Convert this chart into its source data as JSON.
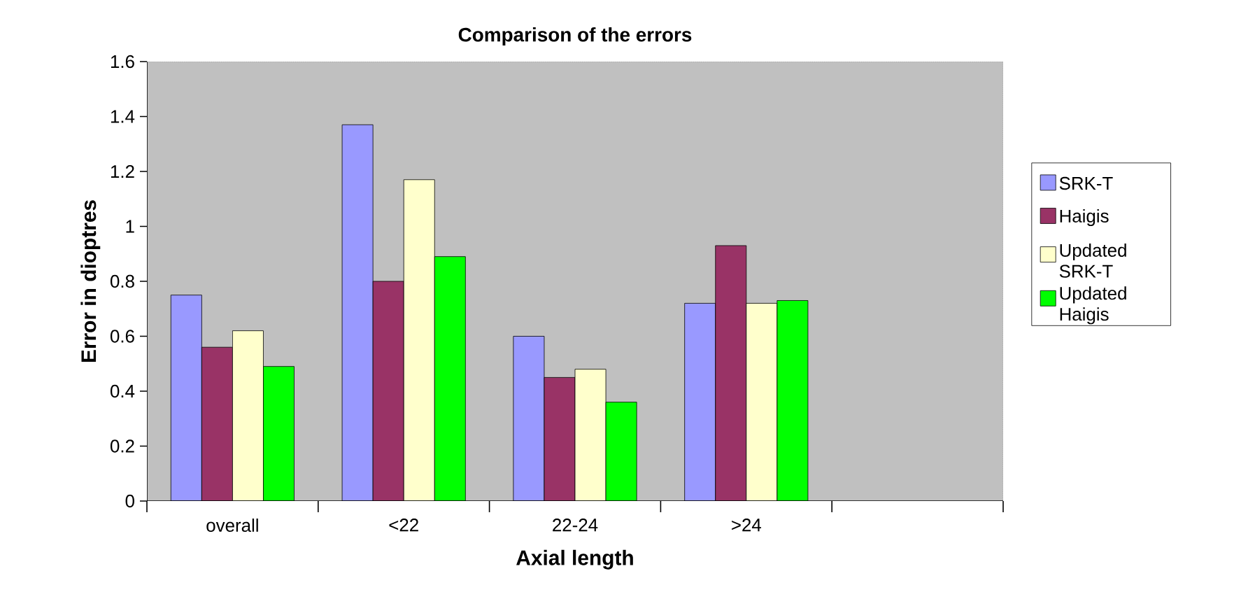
{
  "chart_data": {
    "type": "bar",
    "title": "Comparison of the errors",
    "xlabel": "Axial length",
    "ylabel": "Error in dioptres",
    "categories": [
      "overall",
      "<22",
      "22-24",
      ">24",
      null
    ],
    "series": [
      {
        "name": "SRK-T",
        "color": "#9999ff",
        "values": [
          0.75,
          1.37,
          0.6,
          0.72,
          null
        ]
      },
      {
        "name": "Haigis",
        "color": "#993366",
        "values": [
          0.56,
          0.8,
          0.45,
          0.93,
          null
        ]
      },
      {
        "name": "Updated SRK-T",
        "color": "#ffffcc",
        "values": [
          0.62,
          1.17,
          0.48,
          0.72,
          null
        ]
      },
      {
        "name": "Updated Haigis",
        "color": "#00ff00",
        "values": [
          0.49,
          0.89,
          0.36,
          0.73,
          null
        ]
      }
    ],
    "ylim": [
      0,
      1.6
    ],
    "yticks": [
      0,
      0.2,
      0.4,
      0.6,
      0.8,
      1,
      1.2,
      1.4,
      1.6
    ],
    "grid": false,
    "legend": "right"
  }
}
